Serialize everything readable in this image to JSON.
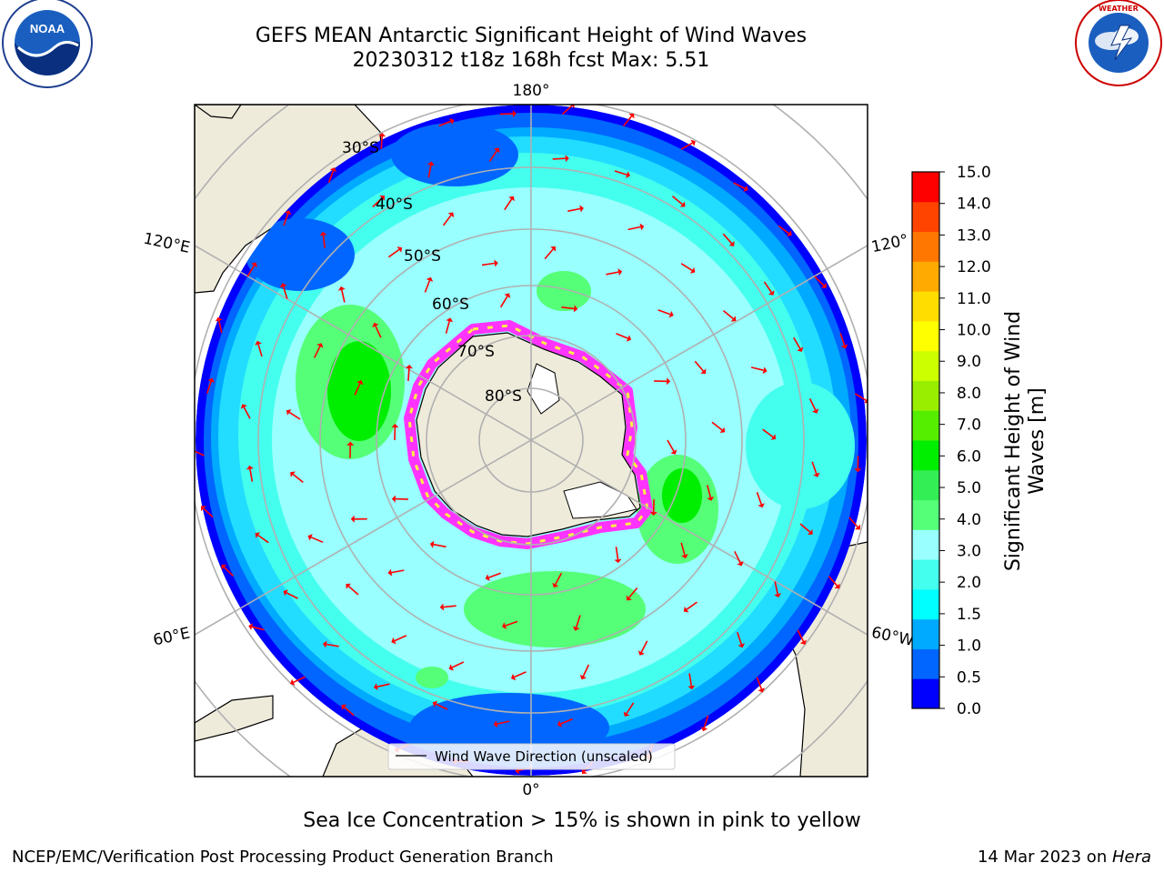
{
  "header": {
    "title_line1": "GEFS MEAN Antarctic Significant Height of Wind Waves",
    "title_line2": "20230312 t18z 168h fcst   Max: 5.51",
    "left_logo": "NOAA",
    "left_logo_ring": "NATIONAL OCEANIC AND ATMOSPHERIC ADMINISTRATION · U.S. DEPARTMENT OF COMMERCE",
    "right_logo_ring": "NATIONAL WEATHER SERVICE"
  },
  "map": {
    "projection": "south-polar-stereographic",
    "longitude_labels": {
      "top": "180°",
      "bottom": "0°",
      "left_upper": "120°E",
      "left_lower": "60°E",
      "right_upper": "120°",
      "right_lower": "60°W"
    },
    "latitude_labels": [
      "30°S",
      "40°S",
      "50°S",
      "60°S",
      "70°S",
      "80°S"
    ],
    "legend_label": "Wind Wave Direction (unscaled)",
    "colors": {
      "land": "#efebdb",
      "coast": "#000000",
      "arrow": "#ff0000",
      "grid": "#b0b0b0",
      "sea_ice_low": "#ff33ff",
      "sea_ice_high": "#ffee44"
    }
  },
  "colorbar": {
    "label": "Significant Height of Wind Waves [m]",
    "label_line1": "Significant Height of Wind",
    "label_line2": "Waves [m]",
    "ticks": [
      "0.0",
      "0.5",
      "1.0",
      "1.5",
      "2.0",
      "3.0",
      "4.0",
      "5.0",
      "6.0",
      "7.0",
      "8.0",
      "9.0",
      "10.0",
      "11.0",
      "12.0",
      "13.0",
      "14.0",
      "15.0"
    ],
    "colors": [
      "#0000ff",
      "#0066ff",
      "#00aaff",
      "#00ffff",
      "#44ffee",
      "#99ffff",
      "#55ff77",
      "#33ee55",
      "#00ee00",
      "#55ee00",
      "#99ee00",
      "#ccff00",
      "#ffff00",
      "#ffdd00",
      "#ffaa00",
      "#ff7700",
      "#ff4400",
      "#ff0000"
    ]
  },
  "notes": {
    "sea_ice": "Sea Ice Concentration > 15% is shown in pink to yellow"
  },
  "footer": {
    "left": "NCEP/EMC/Verification Post Processing Product Generation Branch",
    "date": "14 Mar 2023 on ",
    "machine": "Hera"
  }
}
